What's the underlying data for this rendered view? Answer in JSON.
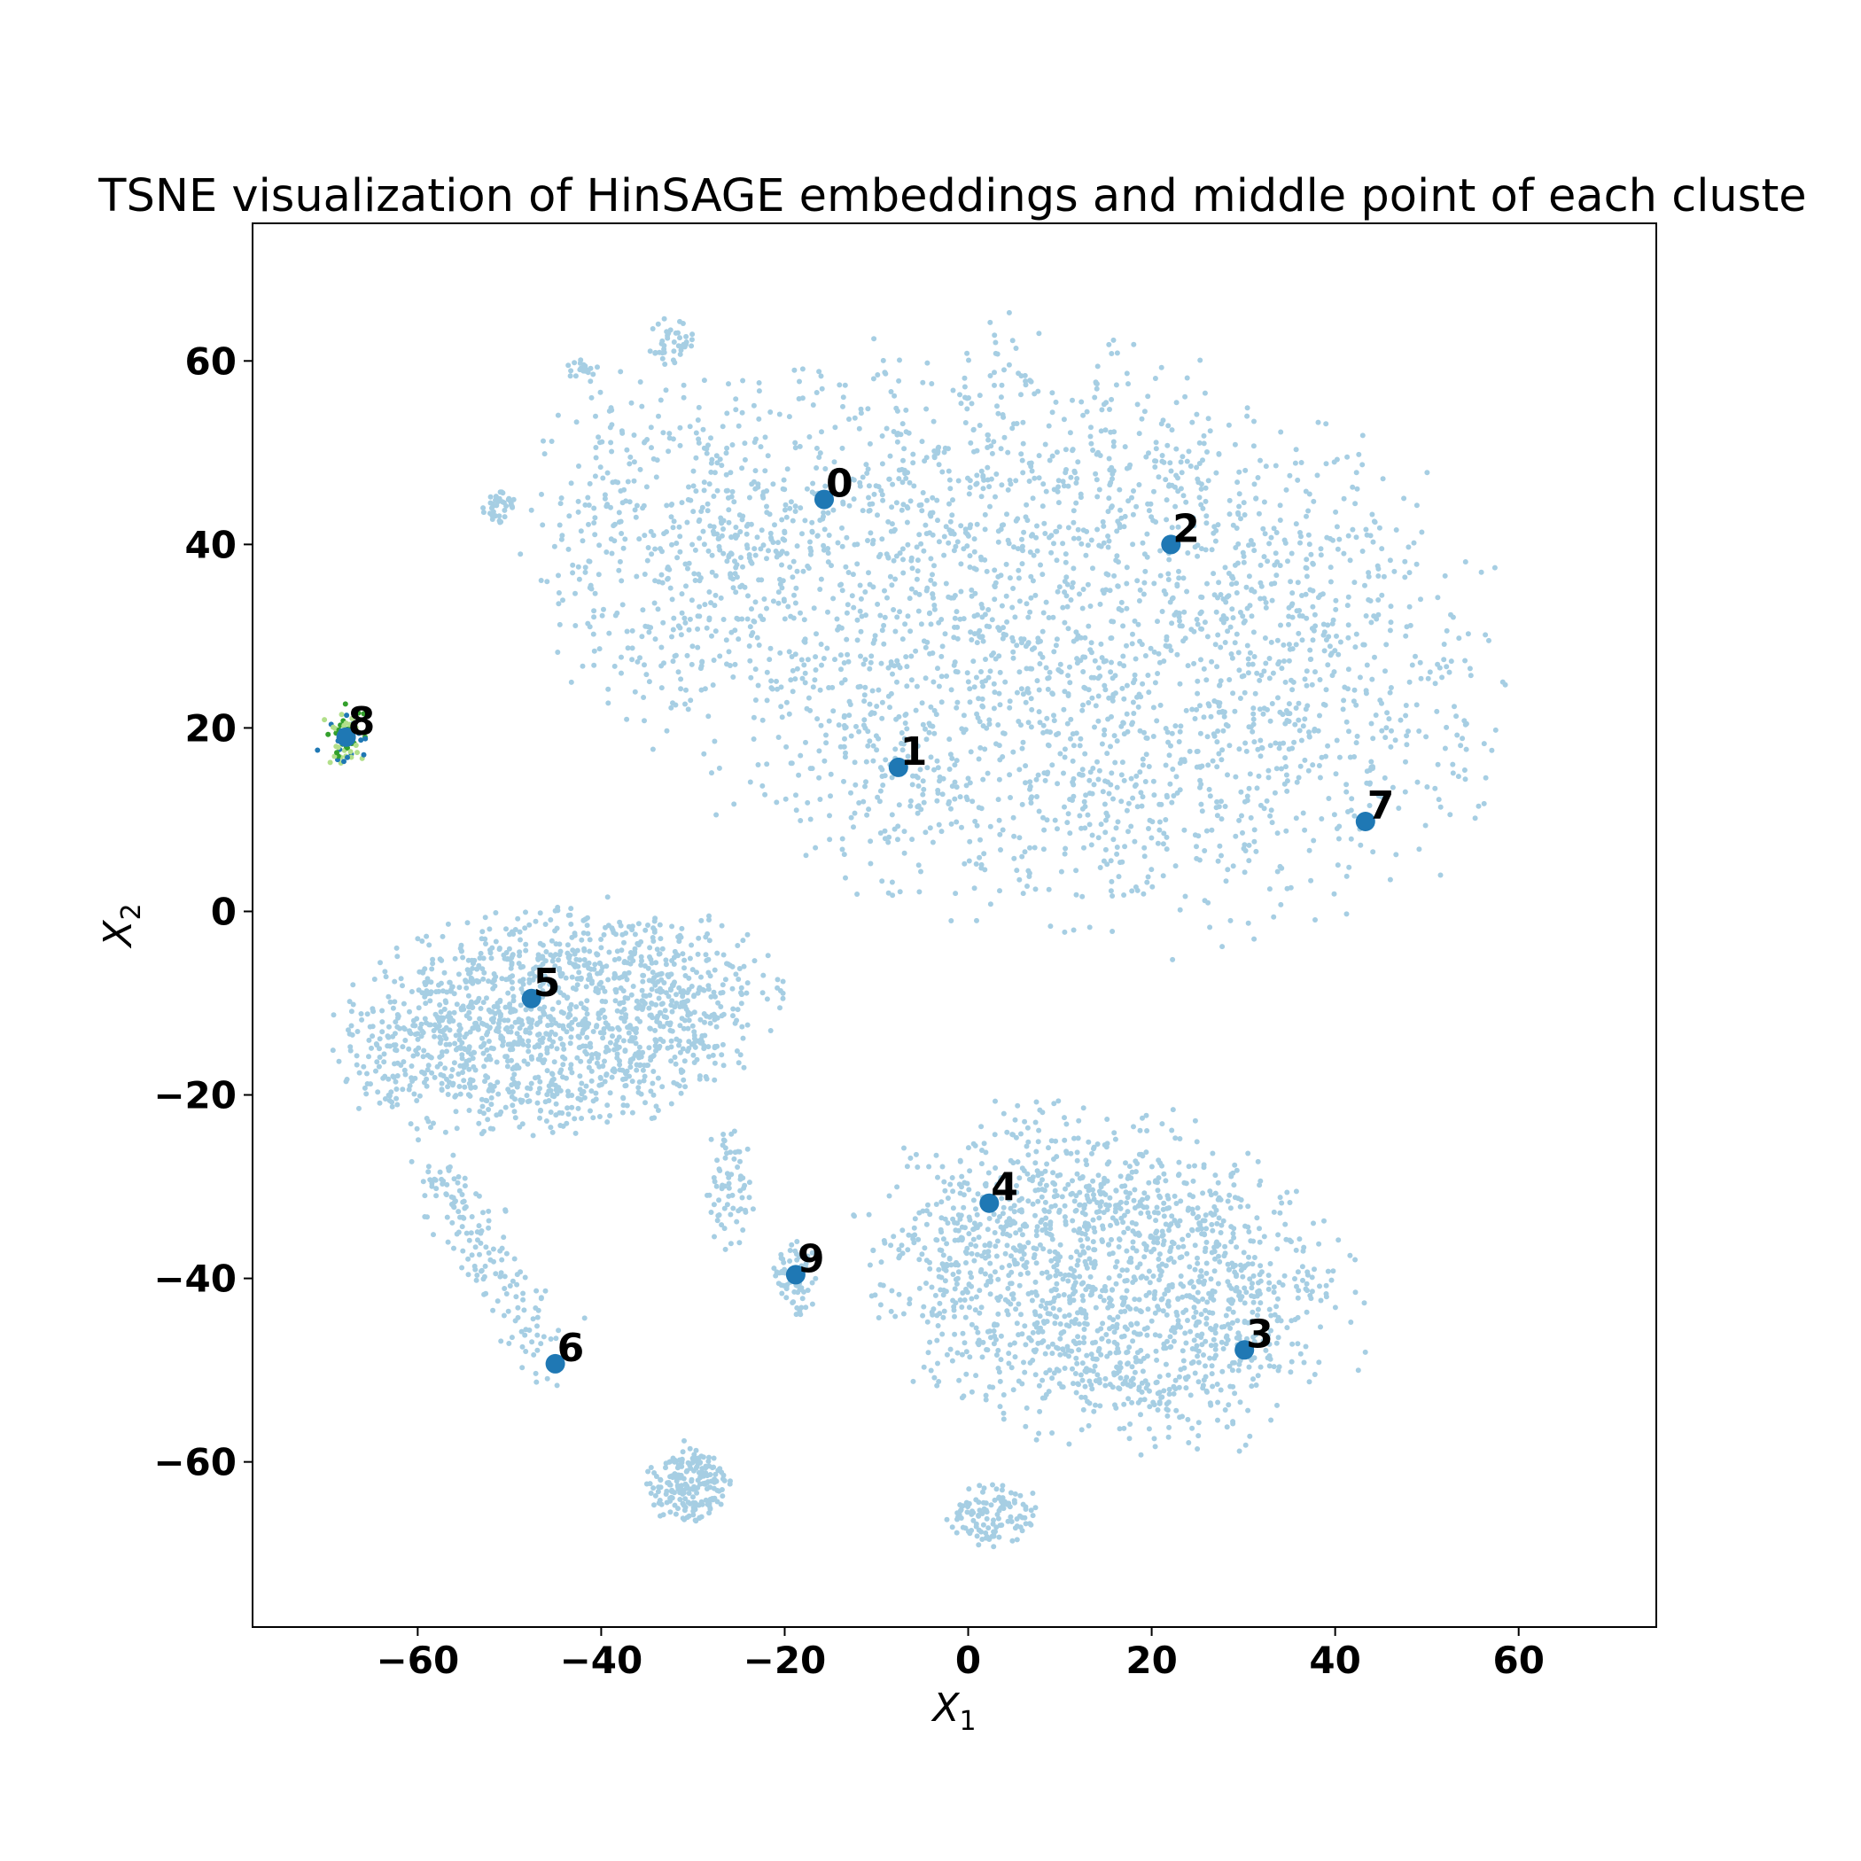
{
  "chart_data": {
    "type": "scatter",
    "title": "TSNE visualization of HinSAGE embeddings and middle point of each cluste",
    "xlabel": "X",
    "xlabel_sub": "1",
    "ylabel": "X",
    "ylabel_sub": "2",
    "xlim": [
      -78,
      75
    ],
    "ylim": [
      -78,
      75
    ],
    "xticks": [
      -60,
      -40,
      -20,
      0,
      20,
      40,
      60
    ],
    "yticks": [
      -60,
      -40,
      -20,
      0,
      20,
      40,
      60
    ],
    "xtick_labels": [
      "−60",
      "−40",
      "−20",
      "0",
      "20",
      "40",
      "60"
    ],
    "ytick_labels": [
      "−60",
      "−40",
      "−20",
      "0",
      "20",
      "40",
      "60"
    ],
    "grid": false,
    "colors": {
      "points": "#a6cee3",
      "centroid": "#1f78b4",
      "cluster8_light": "#b2df8a",
      "cluster8_dark": "#33a02c"
    },
    "centroids": [
      {
        "label": "0",
        "x": -15.7,
        "y": 44.9
      },
      {
        "label": "1",
        "x": -7.6,
        "y": 15.7
      },
      {
        "label": "2",
        "x": 22.1,
        "y": 40.0
      },
      {
        "label": "3",
        "x": 30.1,
        "y": -47.8
      },
      {
        "label": "4",
        "x": 2.3,
        "y": -31.8
      },
      {
        "label": "5",
        "x": -47.6,
        "y": -9.5
      },
      {
        "label": "6",
        "x": -45.0,
        "y": -49.3
      },
      {
        "label": "7",
        "x": 43.3,
        "y": 9.8
      },
      {
        "label": "8",
        "x": -67.8,
        "y": 19.0
      },
      {
        "label": "9",
        "x": -18.8,
        "y": -39.6
      }
    ],
    "point_clouds": [
      {
        "cluster": "upper",
        "shape": "ellipse",
        "cx": 10,
        "cy": 30,
        "rx": 55,
        "ry": 35,
        "rot": -12,
        "n": 2600
      },
      {
        "cluster": "upper-left",
        "shape": "ellipse",
        "cx": -33,
        "cy": 40,
        "rx": 18,
        "ry": 22,
        "rot": 0,
        "n": 380
      },
      {
        "cluster": "left",
        "shape": "ellipse",
        "cx": -45,
        "cy": -12,
        "rx": 27,
        "ry": 14,
        "rot": 8,
        "n": 1500
      },
      {
        "cluster": "lower-right",
        "shape": "ellipse",
        "cx": 15,
        "cy": -40,
        "rx": 30,
        "ry": 20,
        "rot": -10,
        "n": 1700
      },
      {
        "cluster": "tail",
        "shape": "line",
        "x1": -58,
        "y1": -28,
        "x2": -46,
        "y2": -49,
        "n": 160
      },
      {
        "cluster": "blob-bottom",
        "shape": "ellipse",
        "cx": -30.5,
        "cy": -62.5,
        "rx": 5,
        "ry": 5,
        "rot": 0,
        "n": 200
      },
      {
        "cluster": "blob-9",
        "shape": "ellipse",
        "cx": -19,
        "cy": -40,
        "rx": 2.8,
        "ry": 5,
        "rot": 0,
        "n": 70
      },
      {
        "cluster": "bottom-stub",
        "shape": "ellipse",
        "cx": 3,
        "cy": -66,
        "rx": 6,
        "ry": 4,
        "rot": 0,
        "n": 120
      },
      {
        "cluster": "upper-satellite-1",
        "shape": "ellipse",
        "cx": -51,
        "cy": 44,
        "rx": 2.5,
        "ry": 2,
        "rot": 0,
        "n": 40
      },
      {
        "cluster": "upper-satellite-2",
        "shape": "ellipse",
        "cx": -42,
        "cy": 59,
        "rx": 2,
        "ry": 1.5,
        "rot": 0,
        "n": 20
      },
      {
        "cluster": "upper-satellite-3",
        "shape": "ellipse",
        "cx": -32,
        "cy": 62,
        "rx": 3,
        "ry": 3,
        "rot": 0,
        "n": 40
      },
      {
        "cluster": "mid-strip",
        "shape": "ellipse",
        "cx": -26,
        "cy": -30,
        "rx": 3,
        "ry": 8,
        "rot": 0,
        "n": 70
      }
    ],
    "cluster8_points": 70
  }
}
